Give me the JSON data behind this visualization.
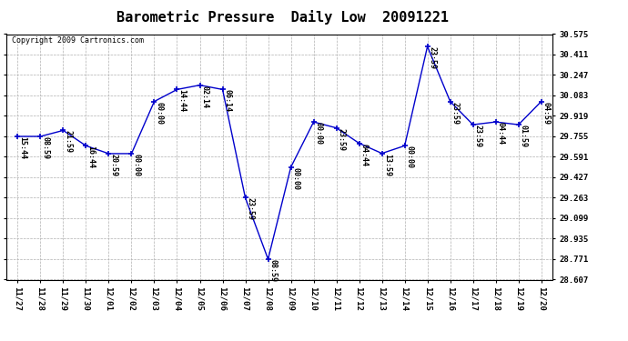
{
  "title": "Barometric Pressure  Daily Low  20091221",
  "copyright": "Copyright 2009 Cartronics.com",
  "line_color": "#0000cc",
  "marker_color": "#0000cc",
  "background_color": "#ffffff",
  "grid_color": "#b0b0b0",
  "x_labels": [
    "11/27",
    "11/28",
    "11/29",
    "11/30",
    "12/01",
    "12/02",
    "12/03",
    "12/04",
    "12/05",
    "12/06",
    "12/07",
    "12/08",
    "12/09",
    "12/10",
    "12/11",
    "12/12",
    "12/13",
    "12/14",
    "12/15",
    "12/16",
    "12/17",
    "12/18",
    "12/19",
    "12/20"
  ],
  "y_values": [
    29.755,
    29.755,
    29.803,
    29.68,
    29.617,
    29.617,
    30.035,
    30.131,
    30.166,
    30.131,
    29.263,
    28.771,
    29.508,
    29.871,
    29.823,
    29.7,
    29.619,
    29.68,
    30.476,
    30.035,
    29.849,
    29.871,
    29.849,
    30.035
  ],
  "time_labels": [
    "15:44",
    "08:59",
    "21:59",
    "16:44",
    "20:59",
    "00:00",
    "00:00",
    "14:44",
    "02:14",
    "06:14",
    "23:59",
    "08:59",
    "00:00",
    "00:00",
    "23:59",
    "04:44",
    "13:59",
    "00:00",
    "23:59",
    "23:59",
    "23:59",
    "04:44",
    "01:59",
    "04:59"
  ],
  "ylim_min": 28.607,
  "ylim_max": 30.575,
  "y_ticks": [
    28.607,
    28.771,
    28.935,
    29.099,
    29.263,
    29.427,
    29.591,
    29.755,
    29.919,
    30.083,
    30.247,
    30.411,
    30.575
  ],
  "title_fontsize": 11,
  "label_fontsize": 6,
  "tick_fontsize": 6.5,
  "copyright_fontsize": 6
}
